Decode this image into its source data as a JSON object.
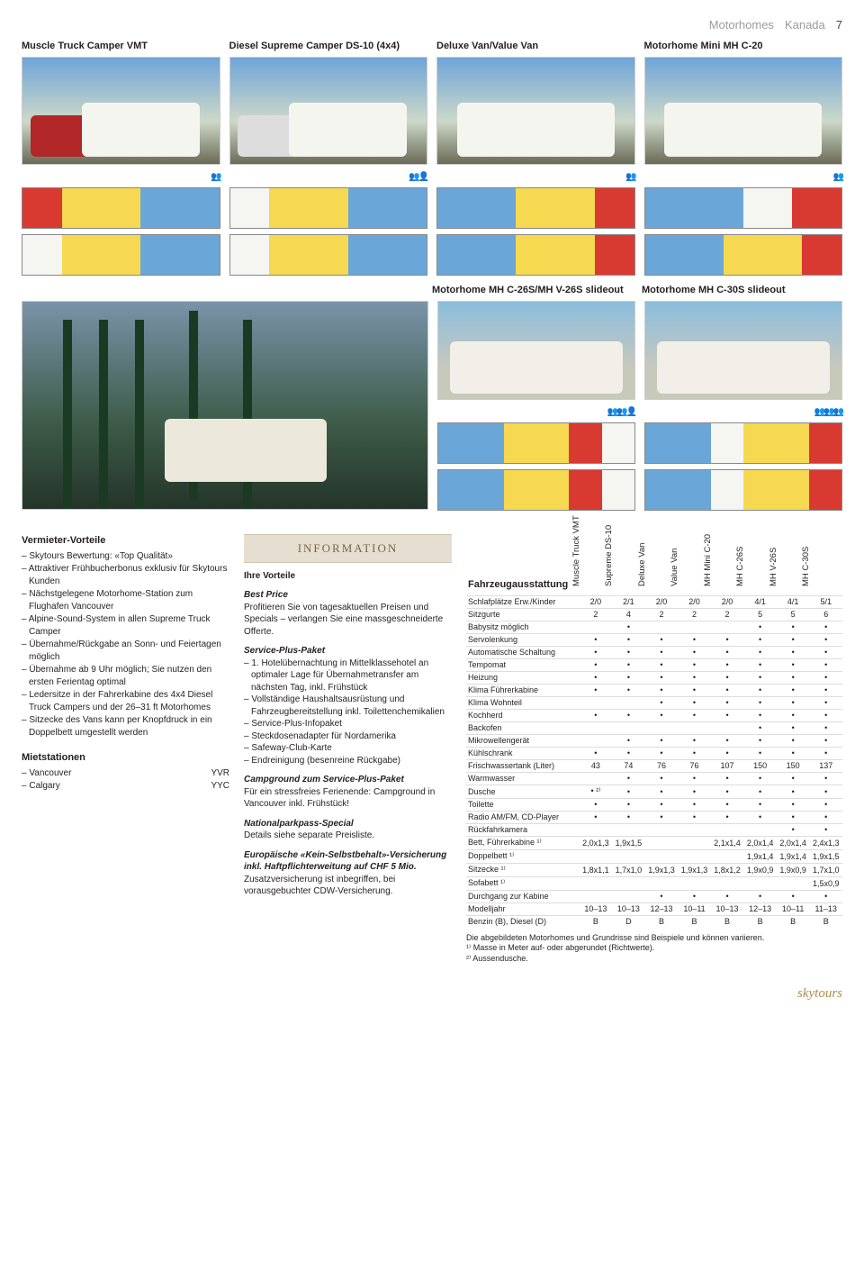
{
  "header": {
    "category": "Motorhomes",
    "region": "Kanada",
    "page": "7"
  },
  "models": [
    "Muscle Truck Camper VMT",
    "Diesel Supreme Camper DS-10 (4x4)",
    "Deluxe Van/Value Van",
    "Motorhome Mini MH C-20"
  ],
  "mid_models": [
    "Motorhome MH C-26S/MH V-26S slideout",
    "Motorhome MH C-30S slideout"
  ],
  "col1": {
    "heading": "Vermieter-Vorteile",
    "items": [
      "Skytours Bewertung: «Top Qualität»",
      "Attraktiver Frühbucherbonus exklusiv für Skytours Kunden",
      "Nächstgelegene Motorhome-Station zum Flughafen Vancouver",
      "Alpine-Sound-System in allen Supreme Truck Camper",
      "Übernahme/Rückgabe an Sonn- und Feiertagen möglich",
      "Übernahme ab 9 Uhr möglich; Sie nutzen den ersten Ferientag optimal",
      "Ledersitze in der Fahrerkabine des 4x4 Diesel Truck Campers und der 26–31 ft Motorhomes",
      "Sitzecke des Vans kann per Knopfdruck in ein Doppelbett umgestellt werden"
    ],
    "stations_heading": "Mietstationen",
    "stations": [
      {
        "city": "Vancouver",
        "code": "YVR"
      },
      {
        "city": "Calgary",
        "code": "YYC"
      }
    ]
  },
  "col2": {
    "banner": "INFORMATION",
    "h1": "Ihre Vorteile",
    "bp_h": "Best Price",
    "bp_text": "Profitieren Sie von tagesaktuellen Preisen und Specials – verlangen Sie eine massgeschneiderte Offerte.",
    "spp_h": "Service-Plus-Paket",
    "spp_items": [
      "1. Hotelübernachtung in Mittelklasse­hotel an optimaler Lage für Übernahme­transfer am nächsten Tag, inkl. Frühstück",
      "Vollständige Haushaltsausrüstung und Fahrzeugbereitstellung inkl. Toilettenchemikalien",
      "Service-Plus-Infopaket",
      "Steckdosenadapter für Nordamerika",
      "Safeway-Club-Karte",
      "Endreinigung (besenreine Rückgabe)"
    ],
    "camp_h": "Campground zum Service-Plus-Paket",
    "camp_text": "Für ein stressfreies Ferienende: Camp­ground in Vancouver inkl. Frühstück!",
    "np_h": "Nationalparkpass-Special",
    "np_text": "Details siehe separate Preisliste.",
    "eu_h": "Europäische «Kein-Selbstbehalt»-Versicherung inkl. Haftpflichterweitung auf CHF 5 Mio.",
    "eu_text": "Zusatzversicherung ist inbegriffen, bei vorausgebuchter CDW-Versicherung."
  },
  "spec": {
    "heading": "Fahrzeugausstattung",
    "columns": [
      "Muscle Truck VMT",
      "Supreme DS-10",
      "Deluxe Van",
      "Value Van",
      "MH Mini C-20",
      "MH C-26S",
      "MH V-26S",
      "MH C-30S"
    ],
    "rows": [
      {
        "label": "Schlafplätze Erw./Kinder",
        "v": [
          "2/0",
          "2/1",
          "2/0",
          "2/0",
          "2/0",
          "4/1",
          "4/1",
          "5/1"
        ]
      },
      {
        "label": "Sitzgurte",
        "v": [
          "2",
          "4",
          "2",
          "2",
          "2",
          "5",
          "5",
          "6"
        ]
      },
      {
        "label": "Babysitz möglich",
        "v": [
          "",
          "•",
          "",
          "",
          "",
          "•",
          "•",
          "•"
        ]
      },
      {
        "label": "Servolenkung",
        "v": [
          "•",
          "•",
          "•",
          "•",
          "•",
          "•",
          "•",
          "•"
        ]
      },
      {
        "label": "Automatische Schaltung",
        "v": [
          "•",
          "•",
          "•",
          "•",
          "•",
          "•",
          "•",
          "•"
        ]
      },
      {
        "label": "Tempomat",
        "v": [
          "•",
          "•",
          "•",
          "•",
          "•",
          "•",
          "•",
          "•"
        ]
      },
      {
        "label": "Heizung",
        "v": [
          "•",
          "•",
          "•",
          "•",
          "•",
          "•",
          "•",
          "•"
        ]
      },
      {
        "label": "Klima Führerkabine",
        "v": [
          "•",
          "•",
          "•",
          "•",
          "•",
          "•",
          "•",
          "•"
        ]
      },
      {
        "label": "Klima Wohnteil",
        "v": [
          "",
          "",
          "•",
          "•",
          "•",
          "•",
          "•",
          "•"
        ]
      },
      {
        "label": "Kochherd",
        "v": [
          "•",
          "•",
          "•",
          "•",
          "•",
          "•",
          "•",
          "•"
        ]
      },
      {
        "label": "Backofen",
        "v": [
          "",
          "",
          "",
          "",
          "",
          "•",
          "•",
          "•"
        ]
      },
      {
        "label": "Mikrowellengerät",
        "v": [
          "",
          "•",
          "•",
          "•",
          "•",
          "•",
          "•",
          "•"
        ]
      },
      {
        "label": "Kühlschrank",
        "v": [
          "•",
          "•",
          "•",
          "•",
          "•",
          "•",
          "•",
          "•"
        ]
      },
      {
        "label": "Frischwassertank (Liter)",
        "v": [
          "43",
          "74",
          "76",
          "76",
          "107",
          "150",
          "150",
          "137"
        ]
      },
      {
        "label": "Warmwasser",
        "v": [
          "",
          "•",
          "•",
          "•",
          "•",
          "•",
          "•",
          "•"
        ]
      },
      {
        "label": "Dusche",
        "v": [
          "• ²⁾",
          "•",
          "•",
          "•",
          "•",
          "•",
          "•",
          "•"
        ]
      },
      {
        "label": "Toilette",
        "v": [
          "•",
          "•",
          "•",
          "•",
          "•",
          "•",
          "•",
          "•"
        ]
      },
      {
        "label": "Radio AM/FM, CD-Player",
        "v": [
          "•",
          "•",
          "•",
          "•",
          "•",
          "•",
          "•",
          "•"
        ]
      },
      {
        "label": "Rückfahrkamera",
        "v": [
          "",
          "",
          "",
          "",
          "",
          "",
          "•",
          "•"
        ]
      },
      {
        "label": "Bett, Führerkabine ¹⁾",
        "v": [
          "2,0x1,3",
          "1,9x1,5",
          "",
          "",
          "2,1x1,4",
          "2,0x1,4",
          "2,0x1,4",
          "2,4x1,3"
        ]
      },
      {
        "label": "Doppelbett ¹⁾",
        "v": [
          "",
          "",
          "",
          "",
          "",
          "1,9x1,4",
          "1,9x1,4",
          "1,9x1,5"
        ]
      },
      {
        "label": "Sitzecke ¹⁾",
        "v": [
          "1,8x1,1",
          "1,7x1,0",
          "1,9x1,3",
          "1,9x1,3",
          "1,8x1,2",
          "1,9x0,9",
          "1,9x0,9",
          "1,7x1,0"
        ]
      },
      {
        "label": "Sofabett ¹⁾",
        "v": [
          "",
          "",
          "",
          "",
          "",
          "",
          "",
          "1,5x0,9"
        ]
      },
      {
        "label": "Durchgang zur Kabine",
        "v": [
          "",
          "",
          "•",
          "•",
          "•",
          "•",
          "•",
          "•"
        ]
      },
      {
        "label": "Modelljahr",
        "v": [
          "10–13",
          "10–13",
          "12–13",
          "10–11",
          "10–13",
          "12–13",
          "10–11",
          "11–13"
        ]
      },
      {
        "label": "Benzin (B), Diesel (D)",
        "v": [
          "B",
          "D",
          "B",
          "B",
          "B",
          "B",
          "B",
          "B"
        ]
      }
    ],
    "footnotes": [
      "Die abgebildeten Motorhomes und Grundrisse sind Beispiele und können variieren.",
      "¹⁾ Masse in Meter auf- oder abgerundet (Richtwerte).",
      "²⁾ Aussendusche."
    ]
  },
  "brand": "skytours"
}
